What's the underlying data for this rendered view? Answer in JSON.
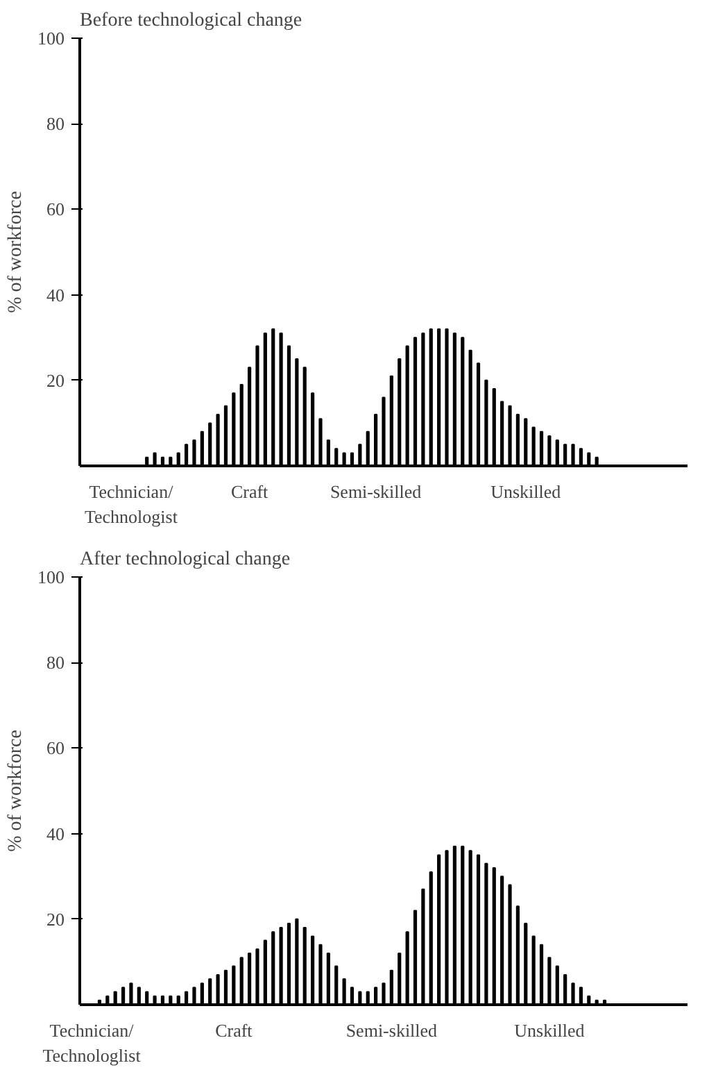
{
  "chart_data": [
    {
      "type": "bar",
      "title": "Before technological change",
      "ylabel": "% of workforce",
      "color": "#000000",
      "categories": [
        null,
        null,
        null,
        null,
        null,
        null,
        "Technician/\nTechnologist",
        null,
        null,
        null,
        null,
        null,
        null,
        null,
        null,
        null,
        null,
        null,
        null,
        null,
        null,
        "Craft",
        null,
        null,
        null,
        null,
        null,
        null,
        null,
        null,
        null,
        null,
        null,
        null,
        null,
        null,
        null,
        "Semi-skilled",
        null,
        null,
        null,
        null,
        null,
        null,
        null,
        null,
        null,
        null,
        null,
        null,
        null,
        null,
        null,
        null,
        null,
        null,
        "Unskilled",
        null,
        null,
        null,
        null,
        null,
        null,
        null,
        null,
        null,
        null,
        null,
        null,
        null,
        null,
        null,
        null,
        null,
        null,
        null,
        null
      ],
      "values": [
        null,
        null,
        null,
        null,
        null,
        null,
        null,
        null,
        2,
        3,
        2,
        2,
        3,
        5,
        6,
        8,
        10,
        12,
        14,
        17,
        19,
        23,
        28,
        31,
        32,
        31,
        28,
        25,
        23,
        17,
        11,
        6,
        4,
        3,
        3,
        5,
        8,
        12,
        16,
        21,
        25,
        28,
        30,
        31,
        32,
        32,
        32,
        31,
        30,
        27,
        24,
        20,
        18,
        15,
        14,
        12,
        11,
        9,
        8,
        7,
        6,
        5,
        5,
        4,
        3,
        2,
        null,
        null,
        null,
        null,
        null,
        null,
        null,
        null,
        null,
        null,
        null
      ],
      "ylim": [
        0,
        100
      ],
      "yticks": [
        20,
        40,
        60,
        80,
        100
      ],
      "grid": false
    },
    {
      "type": "bar",
      "title": "After technological change",
      "ylabel": "% of workforce",
      "color": "#000000",
      "categories": [
        null,
        "Technician/\nTechnologlist",
        null,
        null,
        null,
        null,
        null,
        null,
        null,
        null,
        null,
        null,
        null,
        null,
        null,
        null,
        null,
        null,
        null,
        "Craft",
        null,
        null,
        null,
        null,
        null,
        null,
        null,
        null,
        null,
        null,
        null,
        null,
        null,
        null,
        null,
        null,
        null,
        null,
        null,
        "Semi-skilled",
        null,
        null,
        null,
        null,
        null,
        null,
        null,
        null,
        null,
        null,
        null,
        null,
        null,
        null,
        null,
        null,
        null,
        null,
        null,
        "Unskilled",
        null,
        null,
        null,
        null,
        null,
        null,
        null,
        null,
        null,
        null,
        null,
        null,
        null,
        null,
        null,
        null,
        null
      ],
      "values": [
        null,
        null,
        1,
        2,
        3,
        4,
        5,
        4,
        3,
        2,
        2,
        2,
        2,
        3,
        4,
        5,
        6,
        7,
        8,
        9,
        11,
        12,
        13,
        15,
        17,
        18,
        19,
        20,
        18,
        16,
        14,
        12,
        9,
        6,
        4,
        3,
        3,
        4,
        5,
        8,
        12,
        17,
        22,
        27,
        31,
        35,
        36,
        37,
        37,
        36,
        35,
        33,
        32,
        30,
        28,
        23,
        19,
        16,
        14,
        11,
        9,
        7,
        5,
        4,
        2,
        1,
        1,
        null,
        null,
        null,
        null,
        null,
        null,
        null,
        null,
        null,
        null
      ],
      "ylim": [
        0,
        100
      ],
      "yticks": [
        20,
        40,
        60,
        80,
        100
      ],
      "grid": false
    }
  ]
}
